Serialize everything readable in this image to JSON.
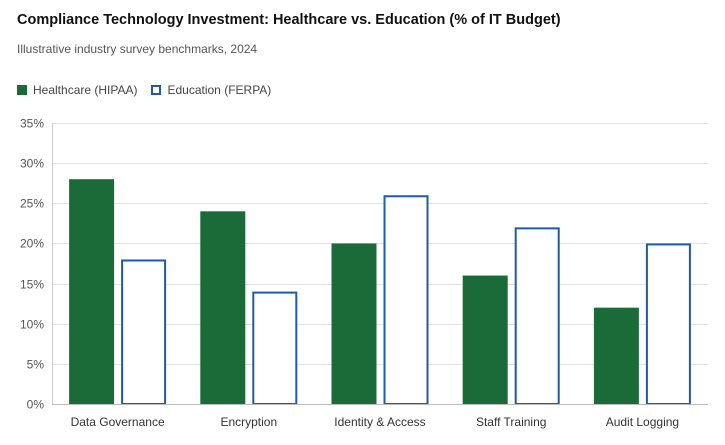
{
  "chart_data": {
    "type": "bar",
    "title": "Compliance Technology Investment: Healthcare vs. Education (% of IT Budget)",
    "subtitle": "Illustrative industry survey benchmarks, 2024",
    "categories": [
      "Data Governance",
      "Encryption",
      "Identity & Access",
      "Staff Training",
      "Audit Logging"
    ],
    "series": [
      {
        "name": "Healthcare (HIPAA)",
        "values": [
          28,
          24,
          20,
          16,
          12
        ],
        "color": "#1a6b38",
        "style": "filled"
      },
      {
        "name": "Education (FERPA)",
        "values": [
          18,
          14,
          26,
          22,
          20
        ],
        "color": "#1f5aa6",
        "style": "outline"
      }
    ],
    "ylim": [
      0,
      35
    ],
    "yticks": [
      "0%",
      "5%",
      "10%",
      "15%",
      "20%",
      "25%",
      "30%",
      "35%"
    ],
    "xlabel": "",
    "ylabel": "",
    "grid": true,
    "legend_position": "top-left"
  }
}
